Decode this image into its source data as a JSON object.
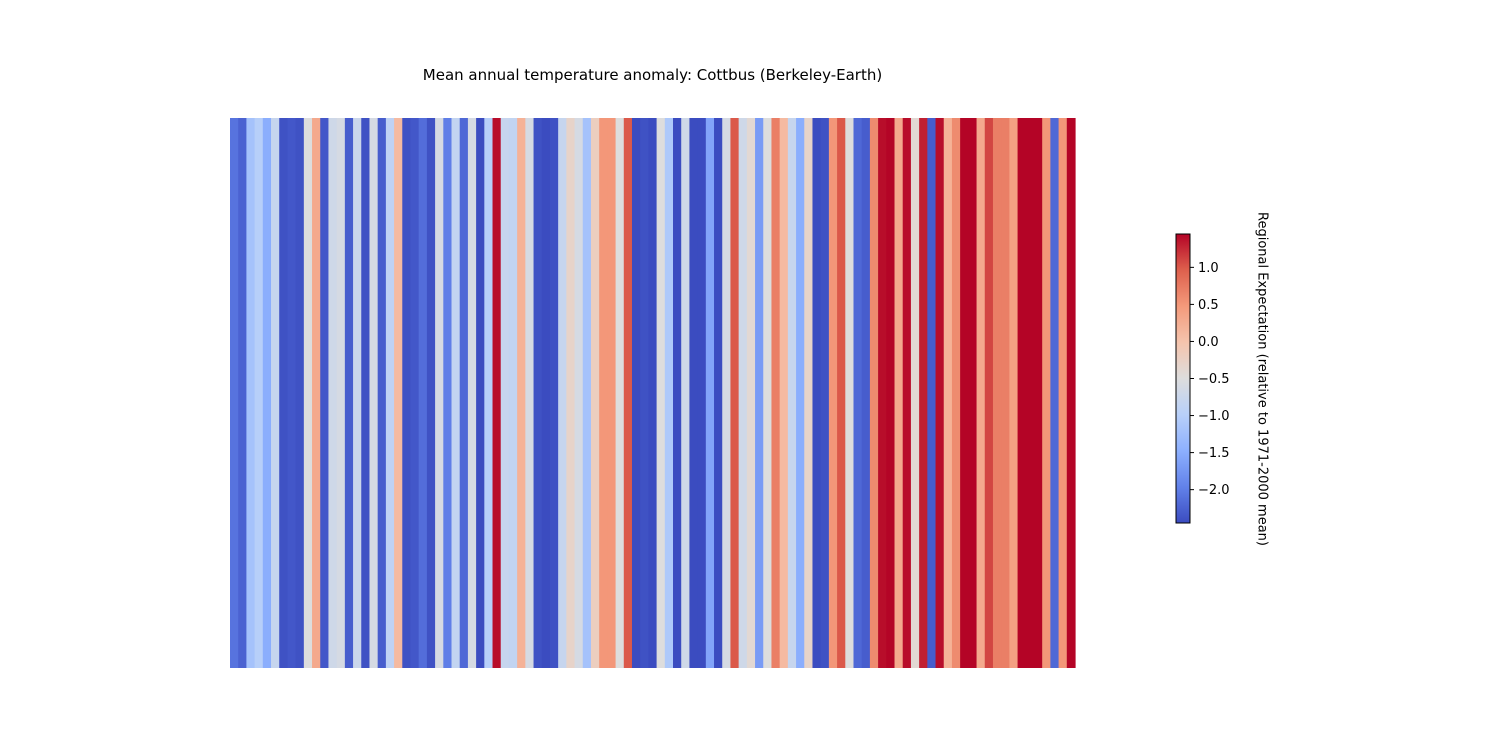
{
  "chart_data": {
    "type": "heatmap",
    "title": "Mean annual temperature anomaly: Cottbus (Berkeley-Earth)",
    "xlabel": "",
    "ylabel": "",
    "colormap": "coolwarm",
    "color_range": [
      -2.45,
      1.45
    ],
    "values": [
      -2.1,
      -2.25,
      -1.2,
      -1.0,
      -1.5,
      -0.8,
      -2.4,
      -2.35,
      -2.4,
      -0.5,
      0.3,
      -2.35,
      -0.7,
      -0.6,
      -2.3,
      -0.75,
      -2.4,
      -0.6,
      -2.3,
      -0.9,
      0.1,
      -2.4,
      -2.35,
      -2.15,
      -2.4,
      -0.6,
      -2.0,
      -0.85,
      -2.2,
      -0.6,
      -2.45,
      -1.0,
      1.4,
      -0.8,
      -0.85,
      0.2,
      -0.6,
      -2.4,
      -2.45,
      -2.4,
      -0.8,
      -0.3,
      -0.6,
      -1.2,
      -0.2,
      0.5,
      0.5,
      -0.5,
      1.0,
      -2.45,
      -2.4,
      -2.45,
      -0.5,
      -1.1,
      -2.45,
      -0.7,
      -2.45,
      -2.45,
      -1.6,
      -2.45,
      -0.6,
      1.0,
      -0.7,
      -0.4,
      -1.7,
      -0.5,
      0.7,
      0.1,
      -0.8,
      -1.5,
      -0.3,
      -2.45,
      -2.4,
      0.5,
      1.0,
      -0.5,
      -2.2,
      -2.3,
      0.6,
      1.4,
      1.45,
      0.3,
      1.4,
      -0.4,
      1.3,
      -2.3,
      1.4,
      0.2,
      0.6,
      1.45,
      1.45,
      0.3,
      1.1,
      0.7,
      0.7,
      0.4,
      1.45,
      1.45,
      1.45,
      0.5,
      -2.2,
      0.5,
      1.45
    ],
    "colorbar": {
      "label": "Regional Expectation (relative to 1971-2000 mean)",
      "range": [
        -2.45,
        1.45
      ],
      "ticks": [
        1.0,
        0.5,
        0.0,
        -0.5,
        -1.0,
        -1.5,
        -2.0
      ],
      "tick_labels": [
        "1.0",
        "0.5",
        "0.0",
        "−0.5",
        "−1.0",
        "−1.5",
        "−2.0"
      ]
    }
  }
}
